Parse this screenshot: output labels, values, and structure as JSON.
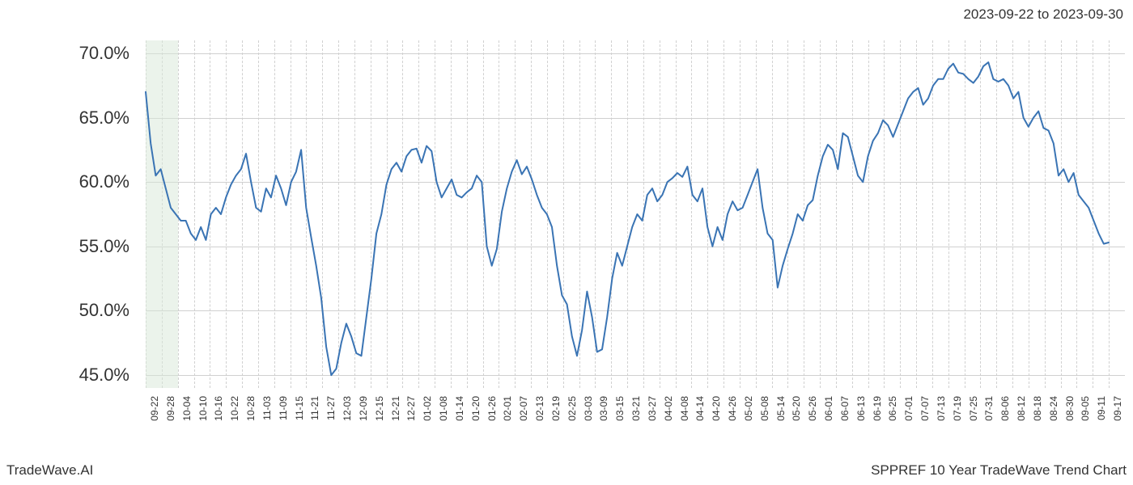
{
  "header": {
    "date_range": "2023-09-22 to 2023-09-30"
  },
  "footer": {
    "brand": "TradeWave.AI",
    "chart_title": "SPPREF 10 Year TradeWave Trend Chart"
  },
  "chart": {
    "type": "line",
    "line_color": "#3a74b4",
    "line_width": 2,
    "background_color": "#ffffff",
    "grid_color": "#d0d0d0",
    "highlight_band_color": "#d8e8d8",
    "highlight_band_opacity": 0.5,
    "highlight_start_idx": 0,
    "highlight_end_idx": 2,
    "ylim": [
      44,
      71
    ],
    "y_ticks": [
      45.0,
      50.0,
      55.0,
      60.0,
      65.0,
      70.0
    ],
    "y_tick_labels": [
      "45.0%",
      "50.0%",
      "55.0%",
      "60.0%",
      "65.0%",
      "70.0%"
    ],
    "y_label_fontsize": 22,
    "x_categories": [
      "09-22",
      "09-28",
      "10-04",
      "10-10",
      "10-16",
      "10-22",
      "10-28",
      "11-03",
      "11-09",
      "11-15",
      "11-21",
      "11-27",
      "12-03",
      "12-09",
      "12-15",
      "12-21",
      "12-27",
      "01-02",
      "01-08",
      "01-14",
      "01-20",
      "01-26",
      "02-01",
      "02-07",
      "02-13",
      "02-19",
      "02-25",
      "03-03",
      "03-09",
      "03-15",
      "03-21",
      "03-27",
      "04-02",
      "04-08",
      "04-14",
      "04-20",
      "04-26",
      "05-02",
      "05-08",
      "05-14",
      "05-20",
      "05-26",
      "06-01",
      "06-07",
      "06-13",
      "06-19",
      "06-25",
      "07-01",
      "07-07",
      "07-13",
      "07-19",
      "07-25",
      "07-31",
      "08-06",
      "08-12",
      "08-18",
      "08-24",
      "08-30",
      "09-05",
      "09-11",
      "09-17"
    ],
    "x_label_fontsize": 12,
    "series": [
      {
        "name": "trend",
        "color": "#3a74b4",
        "values": [
          67.0,
          63.0,
          60.5,
          61.0,
          59.5,
          58.0,
          57.5,
          57.0,
          57.0,
          56.0,
          55.5,
          56.5,
          55.5,
          57.5,
          58.0,
          57.5,
          58.8,
          59.8,
          60.5,
          61.0,
          62.2,
          60.0,
          58.0,
          57.7,
          59.5,
          58.8,
          60.5,
          59.5,
          58.2,
          60.0,
          60.8,
          62.5,
          58.0,
          55.7,
          53.5,
          51.0,
          47.2,
          45.0,
          45.5,
          47.5,
          49.0,
          48.0,
          46.7,
          46.5,
          49.5,
          52.5,
          56.0,
          57.5,
          59.8,
          61.0,
          61.5,
          60.8,
          62.0,
          62.5,
          62.6,
          61.5,
          62.8,
          62.4,
          60.0,
          58.8,
          59.5,
          60.2,
          59.0,
          58.8,
          59.2,
          59.5,
          60.5,
          60.0,
          55.0,
          53.5,
          54.8,
          57.7,
          59.5,
          60.8,
          61.7,
          60.6,
          61.2,
          60.2,
          59.0,
          58.0,
          57.5,
          56.5,
          53.5,
          51.2,
          50.5,
          48.0,
          46.5,
          48.5,
          51.5,
          49.5,
          46.8,
          47.0,
          49.5,
          52.5,
          54.5,
          53.5,
          55.0,
          56.5,
          57.5,
          57.0,
          59.0,
          59.5,
          58.5,
          59.0,
          60.0,
          60.3,
          60.7,
          60.4,
          61.2,
          59.0,
          58.5,
          59.5,
          56.5,
          55.0,
          56.5,
          55.5,
          57.5,
          58.5,
          57.8,
          58.0,
          59.0,
          60.0,
          61.0,
          58.0,
          56.0,
          55.5,
          51.8,
          53.5,
          54.8,
          56.0,
          57.5,
          57.0,
          58.2,
          58.6,
          60.5,
          62.0,
          62.9,
          62.5,
          61.0,
          63.8,
          63.5,
          62.0,
          60.5,
          60.0,
          62.0,
          63.2,
          63.8,
          64.8,
          64.4,
          63.5,
          64.5,
          65.5,
          66.5,
          67.0,
          67.3,
          66.0,
          66.5,
          67.5,
          68.0,
          68.0,
          68.8,
          69.2,
          68.5,
          68.4,
          68.0,
          67.7,
          68.2,
          69.0,
          69.3,
          68.0,
          67.8,
          68.0,
          67.5,
          66.5,
          67.0,
          65.0,
          64.3,
          65.0,
          65.5,
          64.2,
          64.0,
          63.0,
          60.5,
          61.0,
          60.0,
          60.7,
          59.0,
          58.5,
          58.0,
          57.0,
          56.0,
          55.2,
          55.3
        ]
      }
    ]
  }
}
